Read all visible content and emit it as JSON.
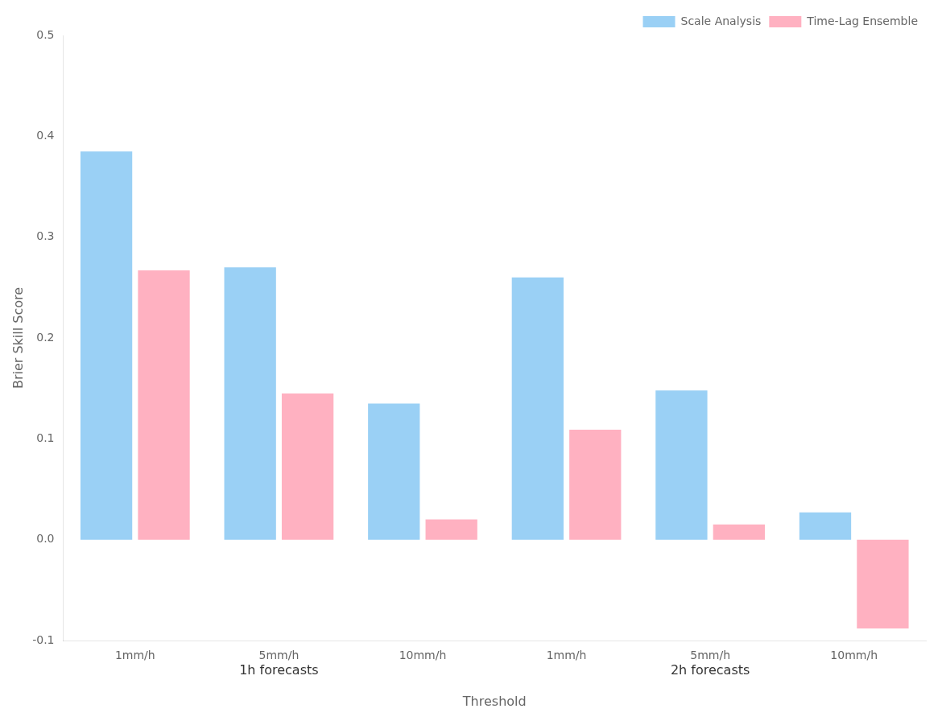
{
  "chart_data": {
    "type": "bar",
    "categories": [
      "1mm/h",
      "5mm/h",
      "10mm/h",
      "1mm/h",
      "5mm/h",
      "10mm/h"
    ],
    "series": [
      {
        "name": "Scale Analysis",
        "values": [
          0.385,
          0.27,
          0.135,
          0.26,
          0.148,
          0.027
        ]
      },
      {
        "name": "Time-Lag Ensemble",
        "values": [
          0.267,
          0.145,
          0.02,
          0.109,
          0.015,
          -0.088
        ]
      }
    ],
    "xlabel": "Threshold",
    "ylabel": "Brier Skill Score",
    "annotations": [
      "1h forecasts",
      "2h forecasts"
    ],
    "ylim": [
      -0.1,
      0.5
    ],
    "yticks": [
      -0.1,
      {
        "value": 0,
        "label": "0.0"
      },
      0.1,
      0.2,
      0.3,
      0.4,
      0.5
    ],
    "grid": false,
    "legend": "upper right"
  }
}
